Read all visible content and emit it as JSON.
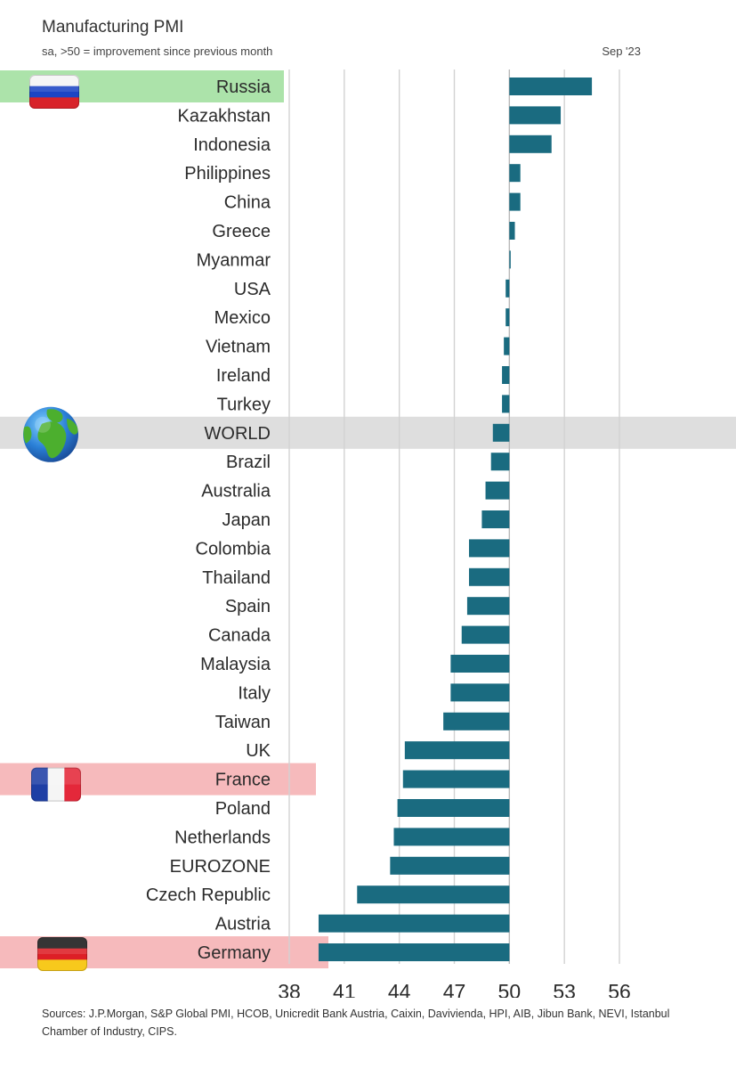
{
  "chart_data": {
    "type": "bar",
    "orientation": "horizontal",
    "title": "Manufacturing PMI",
    "subtitle": "sa, >50 = improvement since previous month",
    "period": "Sep '23",
    "baseline": 50,
    "xlim": [
      38,
      56
    ],
    "xticks": [
      38,
      41,
      44,
      47,
      50,
      53,
      56
    ],
    "grid": true,
    "bar_color": "#1a6b80",
    "categories": [
      "Russia",
      "Kazakhstan",
      "Indonesia",
      "Philippines",
      "China",
      "Greece",
      "Myanmar",
      "USA",
      "Mexico",
      "Vietnam",
      "Ireland",
      "Turkey",
      "WORLD",
      "Brazil",
      "Australia",
      "Japan",
      "Colombia",
      "Thailand",
      "Spain",
      "Canada",
      "Malaysia",
      "Italy",
      "Taiwan",
      "UK",
      "France",
      "Poland",
      "Netherlands",
      "EUROZONE",
      "Czech Republic",
      "Austria",
      "Germany"
    ],
    "values": [
      54.5,
      52.8,
      52.3,
      50.6,
      50.6,
      50.3,
      50.0,
      49.8,
      49.8,
      49.7,
      49.6,
      49.6,
      49.1,
      49.0,
      48.7,
      48.5,
      47.8,
      47.8,
      47.7,
      47.4,
      46.8,
      46.8,
      46.4,
      44.3,
      44.2,
      43.9,
      43.7,
      43.5,
      41.7,
      39.6,
      39.6
    ],
    "highlights": [
      {
        "category": "Russia",
        "color": "#a8e2a5",
        "icon": "russia-flag-icon"
      },
      {
        "category": "WORLD",
        "color": "#dcdcdc",
        "icon": "globe-icon"
      },
      {
        "category": "France",
        "color": "#f6b6b8",
        "icon": "france-flag-icon"
      },
      {
        "category": "Germany",
        "color": "#f6b6b8",
        "icon": "germany-flag-icon"
      }
    ],
    "source": "Sources: J.P.Morgan, S&P Global PMI, HCOB, Unicredit Bank Austria, Caixin, Davivienda, HPI, AIB, Jibun Bank, NEVI, Istanbul Chamber of Industry, CIPS."
  }
}
